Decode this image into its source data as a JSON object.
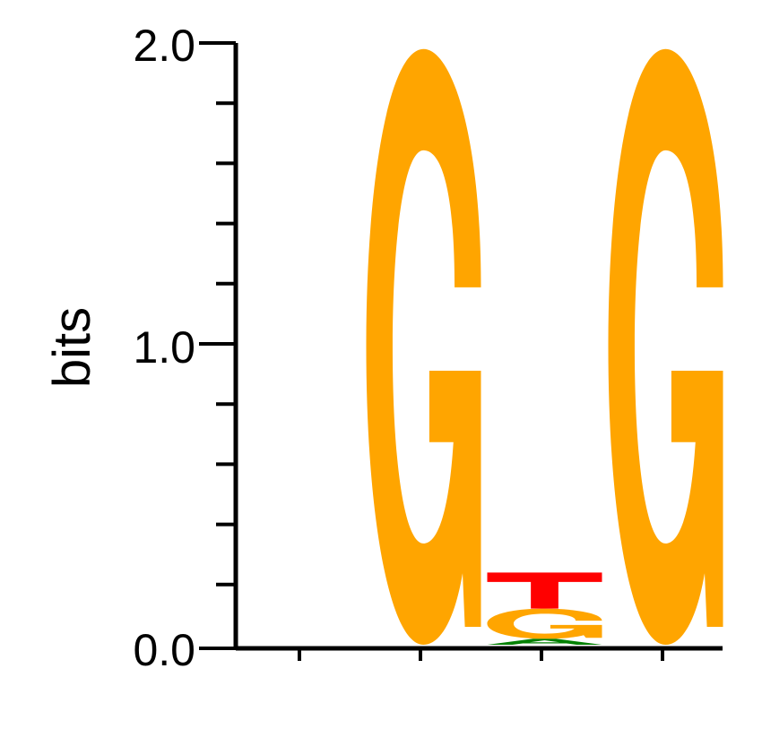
{
  "chart_data": {
    "type": "sequence-logo",
    "ylabel": "bits",
    "ylim": [
      0,
      2.0
    ],
    "y_tick_labels": [
      "0.0",
      "1.0",
      "2.0"
    ],
    "positions": [
      {
        "position": 1,
        "letters": []
      },
      {
        "position": 2,
        "letters": [
          {
            "base": "G",
            "bits": 1.98
          }
        ]
      },
      {
        "position": 3,
        "letters": [
          {
            "base": "A",
            "bits": 0.02
          },
          {
            "base": "G",
            "bits": 0.1
          },
          {
            "base": "T",
            "bits": 0.12
          }
        ]
      },
      {
        "position": 4,
        "letters": [
          {
            "base": "G",
            "bits": 1.98
          }
        ]
      }
    ],
    "colors": {
      "A": "#008000",
      "C": "#0000ff",
      "G": "#ffa500",
      "T": "#ff0000"
    }
  }
}
